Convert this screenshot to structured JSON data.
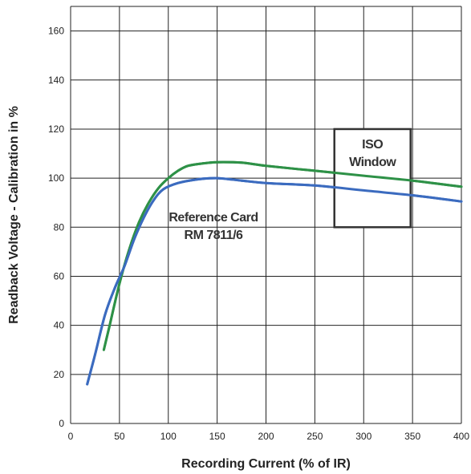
{
  "chart_data": {
    "type": "line",
    "xlabel": "Recording Current (% of IR)",
    "ylabel": "Readback Voltage - Calibration in %",
    "xlim": [
      0,
      400
    ],
    "ylim": [
      0,
      170
    ],
    "x_ticks": [
      0,
      50,
      100,
      150,
      200,
      250,
      300,
      350,
      400
    ],
    "y_ticks": [
      0,
      20,
      40,
      60,
      80,
      100,
      120,
      140,
      160
    ],
    "grid": true,
    "legend": "none",
    "series": [
      {
        "color": "#2e9147",
        "points": [
          [
            34,
            30
          ],
          [
            40,
            40
          ],
          [
            50,
            57
          ],
          [
            60,
            71
          ],
          [
            70,
            82
          ],
          [
            80,
            90
          ],
          [
            90,
            96
          ],
          [
            100,
            100
          ],
          [
            110,
            103
          ],
          [
            120,
            105
          ],
          [
            135,
            106
          ],
          [
            150,
            106.5
          ],
          [
            175,
            106.3
          ],
          [
            200,
            105
          ],
          [
            250,
            103
          ],
          [
            300,
            101
          ],
          [
            350,
            99
          ],
          [
            400,
            96.5
          ]
        ]
      },
      {
        "color": "#3b6bbf",
        "points": [
          [
            17,
            16
          ],
          [
            25,
            28
          ],
          [
            35,
            44
          ],
          [
            45,
            55
          ],
          [
            55,
            64
          ],
          [
            65,
            75
          ],
          [
            75,
            84
          ],
          [
            85,
            91
          ],
          [
            95,
            95.5
          ],
          [
            110,
            98
          ],
          [
            130,
            99.5
          ],
          [
            150,
            100
          ],
          [
            175,
            99
          ],
          [
            200,
            98
          ],
          [
            250,
            97
          ],
          [
            300,
            95
          ],
          [
            350,
            93
          ],
          [
            400,
            90.5
          ]
        ]
      }
    ],
    "annotations": {
      "reference_card": [
        "Reference Card",
        "RM 7811/6"
      ],
      "iso_window": {
        "lines": [
          "ISO",
          "Window"
        ],
        "x_range": [
          270,
          348
        ],
        "y_range": [
          80,
          120
        ]
      }
    }
  }
}
